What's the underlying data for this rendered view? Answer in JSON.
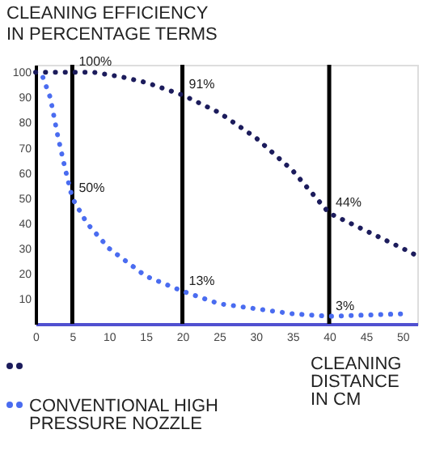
{
  "chart_data": {
    "type": "line",
    "title": "CLEANING EFFICIENCY\nIN PERCENTAGE TERMS",
    "xlabel": "CLEANING\nDISTANCE\nIN CM",
    "series": [
      {
        "color": "#1c1c5c",
        "x": [
          0,
          2,
          5,
          8,
          10,
          12,
          15,
          18,
          20,
          25,
          30,
          35,
          40,
          45,
          50,
          52
        ],
        "values": [
          100,
          100,
          100,
          100,
          99,
          98,
          96,
          93,
          91,
          84,
          74,
          61,
          44,
          37,
          30,
          27
        ]
      },
      {
        "name": "CONVENTIONAL HIGH\nPRESSURE NOZZLE",
        "color": "#4a6cf0",
        "x": [
          1,
          2,
          3,
          4,
          5,
          7,
          10,
          15,
          20,
          25,
          30,
          35,
          40,
          45,
          50
        ],
        "values": [
          98,
          90,
          75,
          62,
          50,
          40,
          30,
          19,
          13,
          8,
          6,
          4,
          3,
          3.5,
          4
        ]
      }
    ],
    "xlim": [
      0,
      52
    ],
    "ylim": [
      0,
      103
    ],
    "xticks": [
      0,
      5,
      10,
      15,
      20,
      25,
      30,
      35,
      40,
      45,
      50
    ],
    "yticks": [
      10,
      20,
      30,
      40,
      50,
      60,
      70,
      80,
      90,
      100
    ],
    "ref_lines": [
      {
        "axis": "x",
        "value": 5
      },
      {
        "axis": "x",
        "value": 20
      },
      {
        "axis": "x",
        "value": 40
      }
    ],
    "annotations": [
      {
        "text": "100%",
        "x": 5,
        "y": 100
      },
      {
        "text": "91%",
        "x": 20,
        "y": 91
      },
      {
        "text": "44%",
        "x": 40,
        "y": 44
      },
      {
        "text": "50%",
        "x": 5,
        "y": 50
      },
      {
        "text": "13%",
        "x": 20,
        "y": 13
      },
      {
        "text": "3%",
        "x": 40,
        "y": 3
      }
    ],
    "legend": "bottom",
    "grid": false,
    "marker": "none",
    "line_style": "dotted"
  }
}
